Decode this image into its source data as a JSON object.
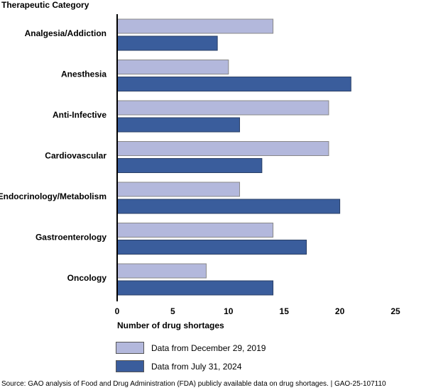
{
  "chart_data": {
    "type": "bar",
    "orientation": "horizontal",
    "category_axis_title": "Therapeutic Category",
    "categories": [
      "Analgesia/Addiction",
      "Anesthesia",
      "Anti-Infective",
      "Cardiovascular",
      "Endocrinology/Metabolism",
      "Gastroenterology",
      "Oncology"
    ],
    "series": [
      {
        "name": "Data from December 29, 2019",
        "color": "#b3b8dc",
        "values": [
          14,
          10,
          19,
          19,
          11,
          14,
          8
        ]
      },
      {
        "name": "Data from July 31, 2024",
        "color": "#3a5d9c",
        "values": [
          9,
          21,
          11,
          13,
          20,
          17,
          14
        ]
      }
    ],
    "xlabel": "Number of drug shortages",
    "xlim": [
      0,
      25
    ],
    "xticks": [
      "0",
      "5",
      "10",
      "15",
      "20",
      "25"
    ],
    "grid": false,
    "legend_placement": "bottom-left",
    "source": "Source: GAO analysis of Food and Drug Administration (FDA) publicly available data on drug shortages.  |  GAO-25-107110"
  }
}
